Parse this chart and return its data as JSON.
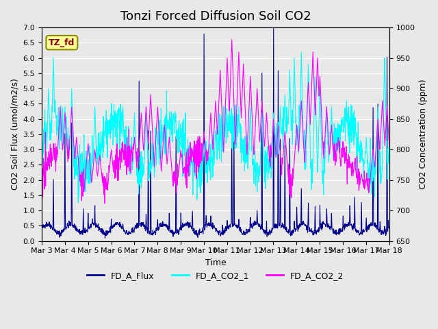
{
  "title": "Tonzi Forced Diffusion Soil CO2",
  "xlabel": "Time",
  "ylabel_left": "CO2 Soil Flux (umol/m2/s)",
  "ylabel_right": "CO2 Concentration (ppm)",
  "ylim_left": [
    0.0,
    7.0
  ],
  "ylim_right": [
    650,
    1000
  ],
  "legend_labels": [
    "FD_A_Flux",
    "FD_A_CO2_1",
    "FD_A_CO2_2"
  ],
  "line_colors": [
    "#00008B",
    "#00FFFF",
    "#FF00FF"
  ],
  "tag_text": "TZ_fd",
  "tag_facecolor": "#FFFF99",
  "tag_edgecolor": "#8B8B00",
  "tag_textcolor": "#8B0000",
  "background_color": "#E8E8E8",
  "title_fontsize": 13,
  "axis_fontsize": 9,
  "tick_fontsize": 8,
  "xtick_labels": [
    "Mar 3",
    "Mar 4",
    "Mar 5",
    "Mar 6",
    "Mar 7",
    "Mar 8",
    "Mar 9",
    "Mar 10",
    "Mar 11",
    "Mar 12",
    "Mar 13",
    "Mar 14",
    "Mar 15",
    "Mar 16",
    "Mar 17",
    "Mar 18"
  ],
  "n_points": 1440,
  "days": 15
}
